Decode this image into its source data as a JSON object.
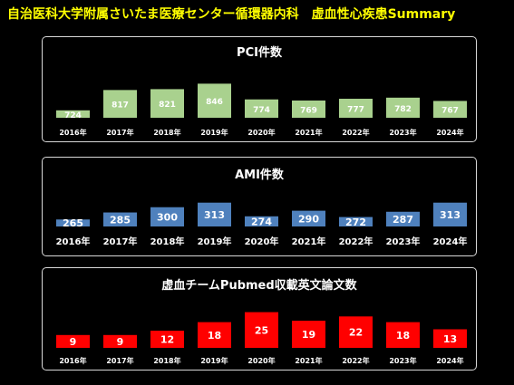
{
  "header": {
    "title": "自治医科大学附属さいたま医療センター循環器内科　虚血性心疾患Summary",
    "title_color": "#ffff00"
  },
  "chart_data": [
    {
      "type": "bar",
      "title": "PCI件数",
      "categories": [
        "2016年",
        "2017年",
        "2018年",
        "2019年",
        "2020年",
        "2021年",
        "2022年",
        "2023年",
        "2024年"
      ],
      "values": [
        724,
        817,
        821,
        846,
        774,
        769,
        777,
        782,
        767
      ],
      "ylim": [
        690,
        860
      ],
      "bar_color": "#a9d18e",
      "label_color": "#ffffff",
      "grid": false,
      "legend": "none"
    },
    {
      "type": "bar",
      "title": "AMI件数",
      "categories": [
        "2016年",
        "2017年",
        "2018年",
        "2019年",
        "2020年",
        "2021年",
        "2022年",
        "2023年",
        "2024年"
      ],
      "values": [
        265,
        285,
        300,
        313,
        274,
        290,
        272,
        287,
        313
      ],
      "ylim": [
        245,
        320
      ],
      "bar_color": "#4f81bd",
      "label_color": "#ffffff",
      "grid": false,
      "legend": "none"
    },
    {
      "type": "bar",
      "title": "虚血チームPubmed収載英文論文数",
      "categories": [
        "2016年",
        "2017年",
        "2018年",
        "2019年",
        "2020年",
        "2021年",
        "2022年",
        "2023年",
        "2024年"
      ],
      "values": [
        9,
        9,
        12,
        18,
        25,
        19,
        22,
        18,
        13
      ],
      "ylim": [
        0,
        26
      ],
      "bar_color": "#ff0000",
      "label_color": "#ffffff",
      "grid": false,
      "legend": "none"
    }
  ]
}
